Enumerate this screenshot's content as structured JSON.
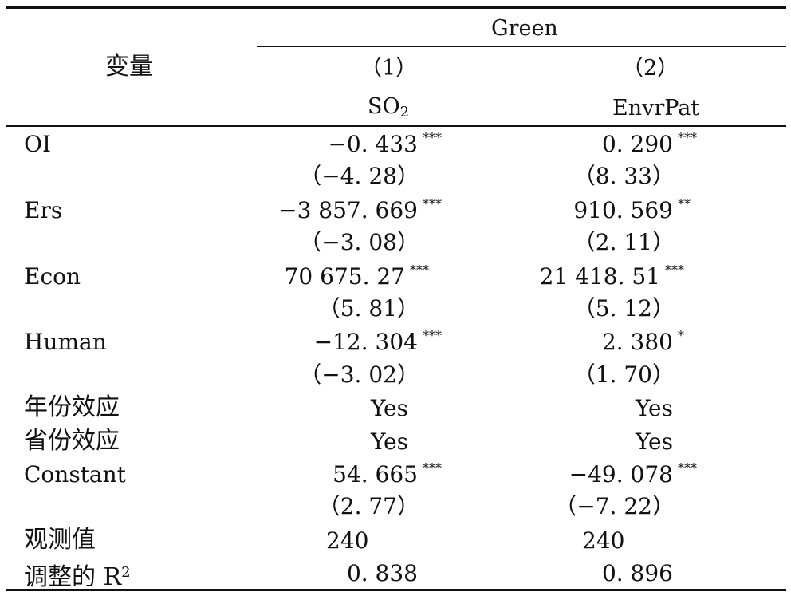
{
  "header": {
    "var_label": "变量",
    "group": "Green",
    "col1_num": "（1）",
    "col2_num": "（2）",
    "col1_name_base": "SO",
    "col1_name_sub": "2",
    "col2_name": "EnvrPat"
  },
  "rows": [
    {
      "label": "OI",
      "c1": "−0. 433",
      "c1_star": "***",
      "c2": "0. 290",
      "c2_star": "***",
      "c1_t": "（−4. 28）",
      "c2_t": "（8. 33）"
    },
    {
      "label": "Ers",
      "c1": "−3 857. 669",
      "c1_star": "***",
      "c2": "910. 569",
      "c2_star": "**",
      "c1_t": "（−3. 08）",
      "c2_t": "（2. 11）"
    },
    {
      "label": "Econ",
      "c1": "70 675. 27",
      "c1_star": "***",
      "c2": "21 418. 51",
      "c2_star": "***",
      "c1_t": "（5. 81）",
      "c2_t": "（5. 12）"
    },
    {
      "label": "Human",
      "c1": "−12. 304",
      "c1_star": "***",
      "c2": "2. 380",
      "c2_star": "*",
      "c1_t": "（−3. 02）",
      "c2_t": "（1. 70）"
    }
  ],
  "effects": [
    {
      "label": "年份效应",
      "c1": "Yes",
      "c2": "Yes"
    },
    {
      "label": "省份效应",
      "c1": "Yes",
      "c2": "Yes"
    }
  ],
  "constant": {
    "label": "Constant",
    "c1": "54. 665",
    "c1_star": "***",
    "c2": "−49. 078",
    "c2_star": "***",
    "c1_t": "（2. 77）",
    "c2_t": "（−7. 22）"
  },
  "obs": {
    "label": "观测值",
    "c1": "240",
    "c2": "240"
  },
  "r2": {
    "label_base": "调整的 R",
    "label_sup": "2",
    "c1": "0. 838",
    "c2": "0. 896"
  }
}
